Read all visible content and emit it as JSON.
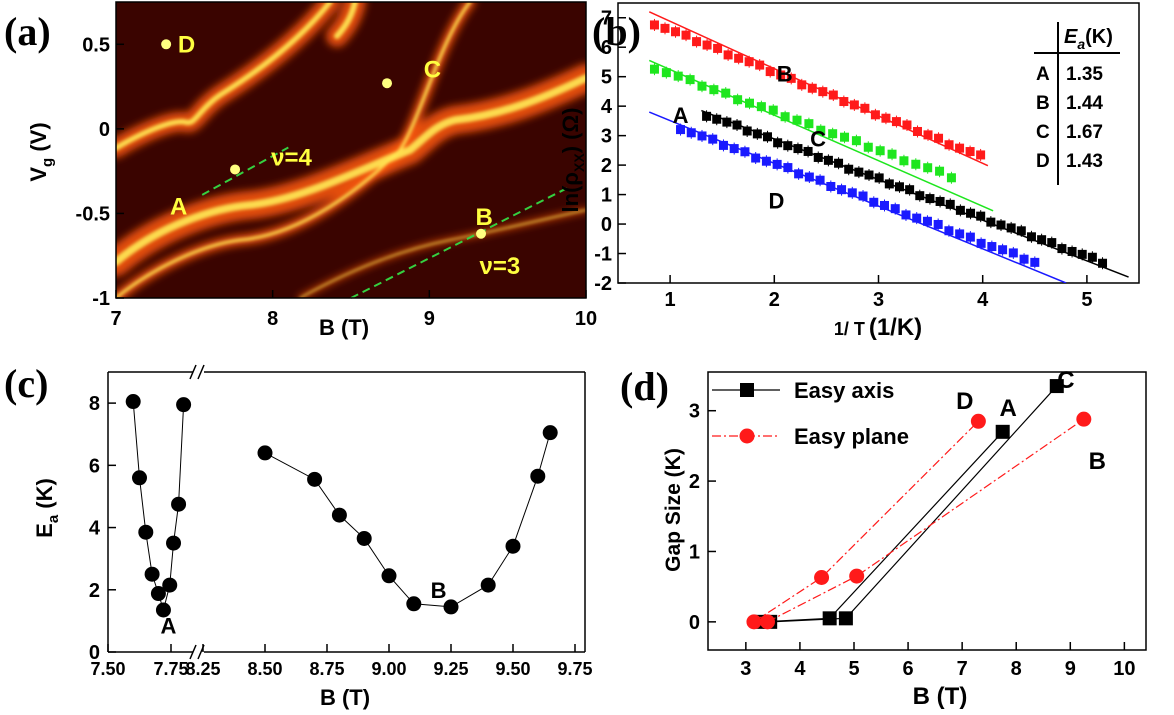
{
  "panels": {
    "a": {
      "label": "(a)",
      "chart_data": {
        "type": "heatmap",
        "xlabel": "B (T)",
        "ylabel": "V_g (V)",
        "xlim": [
          7,
          10
        ],
        "ylim": [
          -1,
          0.75
        ],
        "xticks": [
          7,
          8,
          9,
          10
        ],
        "yticks": [
          -1,
          -0.5,
          0,
          0.5
        ],
        "xticklabels": [
          "7",
          "8",
          "9",
          "10"
        ],
        "yticklabels": [
          "-1",
          "-0.5",
          "0",
          "0.5"
        ],
        "annotations": [
          {
            "text": "D",
            "x": 7.45,
            "y": 0.5
          },
          {
            "text": "C",
            "x": 9.02,
            "y": 0.35
          },
          {
            "text": "ν=4",
            "x": 8.12,
            "y": -0.17
          },
          {
            "text": "A",
            "x": 7.4,
            "y": -0.46
          },
          {
            "text": "B",
            "x": 9.35,
            "y": -0.52
          },
          {
            "text": "ν=3",
            "x": 9.45,
            "y": -0.81
          }
        ],
        "points": [
          {
            "name": "D",
            "x": 7.32,
            "y": 0.5
          },
          {
            "name": "C",
            "x": 8.73,
            "y": 0.27
          },
          {
            "name": "A",
            "x": 7.76,
            "y": -0.24
          },
          {
            "name": "B",
            "x": 9.33,
            "y": -0.62
          }
        ],
        "dashed_lines": [
          {
            "x": [
              7.55,
              8.1
            ],
            "y": [
              -0.39,
              -0.11
            ]
          },
          {
            "x": [
              8.5,
              9.88
            ],
            "y": [
              -1.0,
              -0.35
            ]
          }
        ],
        "colors": {
          "background": "#3a0400",
          "bright": "#ffea55",
          "mid": "#ff5a10",
          "dashed": "#35d040",
          "marker": "#ffff80",
          "label": "#ffff40"
        }
      }
    },
    "b": {
      "label": "(b)",
      "chart_data": {
        "type": "scatter",
        "xlabel_pre": "1/ T",
        "xlabel_unit": "(1/K)",
        "ylabel": "ln(ρ",
        "ylabel_sub": "XX",
        "ylabel_unit": ") (Ω)",
        "xlim": [
          0.5,
          5.5
        ],
        "ylim": [
          -2,
          7.5
        ],
        "xticks": [
          1,
          2,
          3,
          4,
          5
        ],
        "yticks": [
          -2,
          -1,
          0,
          1,
          2,
          3,
          4,
          5,
          6,
          7
        ],
        "xticklabels": [
          "1",
          "2",
          "3",
          "4",
          "5"
        ],
        "yticklabels": [
          "-2",
          "-1",
          "0",
          "1",
          "2",
          "3",
          "4",
          "5",
          "6",
          "7"
        ],
        "series": [
          {
            "name": "B",
            "color": "#ff1a1a",
            "x_start": 0.85,
            "x_end": 3.98,
            "y_start": 6.8,
            "y_end": 2.3,
            "n": 32,
            "fit_x": [
              0.8,
              4.05
            ],
            "fit_y": [
              7.2,
              1.98
            ]
          },
          {
            "name": "C",
            "color": "#1ee61e",
            "x_start": 0.85,
            "x_end": 3.7,
            "y_start": 5.3,
            "y_end": 1.6,
            "n": 26,
            "fit_x": [
              0.8,
              4.1
            ],
            "fit_y": [
              5.55,
              0.45
            ]
          },
          {
            "name": "A",
            "color": "#000000",
            "x_start": 1.35,
            "x_end": 5.15,
            "y_start": 3.7,
            "y_end": -1.3,
            "n": 40,
            "fit_x": [
              1.3,
              5.4
            ],
            "fit_y": [
              3.85,
              -1.8
            ]
          },
          {
            "name": "D",
            "color": "#1a1aff",
            "x_start": 1.1,
            "x_end": 4.5,
            "y_start": 3.25,
            "y_end": -1.3,
            "n": 34,
            "fit_x": [
              0.8,
              4.8
            ],
            "fit_y": [
              3.8,
              -2.0
            ]
          }
        ],
        "annotations": [
          {
            "text": "B",
            "x": 2.1,
            "y": 5.1
          },
          {
            "text": "A",
            "x": 1.1,
            "y": 3.7
          },
          {
            "text": "C",
            "x": 2.42,
            "y": 2.9
          },
          {
            "text": "D",
            "x": 2.02,
            "y": 0.8
          }
        ],
        "table": {
          "header_E": "E",
          "header_sub": "a",
          "header_unit": "(K)",
          "rows": [
            {
              "label": "A",
              "value": "1.35"
            },
            {
              "label": "B",
              "value": "1.44"
            },
            {
              "label": "C",
              "value": "1.67"
            },
            {
              "label": "D",
              "value": "1.43"
            }
          ]
        }
      }
    },
    "c": {
      "label": "(c)",
      "chart_data": {
        "type": "scatter",
        "xlabel": "B (T)",
        "ylabel": "E",
        "ylabel_sub": "a",
        "ylabel_unit": " (K)",
        "ylim": [
          0,
          9
        ],
        "yticks": [
          0,
          2,
          4,
          6,
          8
        ],
        "yticklabels": [
          "0",
          "2",
          "4",
          "6",
          "8"
        ],
        "axis_break": "//",
        "segments": [
          {
            "xlim": [
              7.5,
              7.85
            ],
            "xticks": [
              7.5,
              7.75
            ],
            "xticklabels": [
              "7.50",
              "7.75"
            ]
          },
          {
            "xlim": [
              8.2,
              9.8
            ],
            "xticks": [
              8.25,
              8.5,
              8.75,
              9.0,
              9.25,
              9.5,
              9.75
            ],
            "xticklabels": [
              "8.25",
              "8.50",
              "8.75",
              "9.00",
              "9.25",
              "9.50",
              "9.75"
            ]
          }
        ],
        "series": [
          {
            "name": "",
            "segment": 0,
            "x": [
              7.6,
              7.625,
              7.65,
              7.675,
              7.7,
              7.72,
              7.745,
              7.76,
              7.78,
              7.8
            ],
            "y": [
              8.05,
              5.6,
              3.85,
              2.5,
              1.88,
              1.35,
              2.15,
              3.5,
              4.75,
              7.95
            ]
          },
          {
            "name": "",
            "segment": 1,
            "x": [
              8.5,
              8.7,
              8.8,
              8.9,
              9.0,
              9.1,
              9.25,
              9.4,
              9.5,
              9.6,
              9.65
            ],
            "y": [
              6.4,
              5.55,
              4.4,
              3.65,
              2.45,
              1.55,
              1.45,
              2.15,
              3.4,
              5.65,
              7.05
            ]
          }
        ],
        "annotations": [
          {
            "text": "A",
            "segment": 0,
            "x": 7.74,
            "y": 0.85
          },
          {
            "text": "B",
            "segment": 1,
            "x": 9.2,
            "y": 2.0
          }
        ]
      }
    },
    "d": {
      "label": "(d)",
      "chart_data": {
        "type": "line",
        "xlabel": "B (T)",
        "ylabel": "Gap Size (K)",
        "xlim": [
          2.3,
          10.4
        ],
        "ylim": [
          -0.4,
          3.55
        ],
        "xticks": [
          3,
          4,
          5,
          6,
          7,
          8,
          9,
          10
        ],
        "yticks": [
          0,
          1,
          2,
          3
        ],
        "xticklabels": [
          "3",
          "4",
          "5",
          "6",
          "7",
          "8",
          "9",
          "10"
        ],
        "yticklabels": [
          "0",
          "1",
          "2",
          "3"
        ],
        "legend": [
          "Easy axis",
          "Easy plane"
        ],
        "series": [
          {
            "name": "Easy axis",
            "color": "#000000",
            "marker": "square",
            "lines": [
              {
                "x": [
                  3.3,
                  4.55,
                  7.75
                ],
                "y": [
                  0.0,
                  0.05,
                  2.7
                ]
              },
              {
                "x": [
                  3.45,
                  4.85,
                  8.75
                ],
                "y": [
                  0.0,
                  0.05,
                  3.35
                ]
              }
            ]
          },
          {
            "name": "Easy plane",
            "color": "#ff1a1a",
            "marker": "circle",
            "lines": [
              {
                "x": [
                  3.15,
                  4.4,
                  7.3
                ],
                "y": [
                  0.0,
                  0.63,
                  2.85
                ]
              },
              {
                "x": [
                  3.4,
                  5.05,
                  9.25
                ],
                "y": [
                  0.0,
                  0.65,
                  2.88
                ]
              }
            ]
          }
        ],
        "annotations": [
          {
            "text": "D",
            "x": 7.05,
            "y": 3.15
          },
          {
            "text": "A",
            "x": 7.85,
            "y": 3.05
          },
          {
            "text": "C",
            "x": 8.92,
            "y": 3.45
          },
          {
            "text": "B",
            "x": 9.5,
            "y": 2.3
          }
        ]
      }
    }
  }
}
